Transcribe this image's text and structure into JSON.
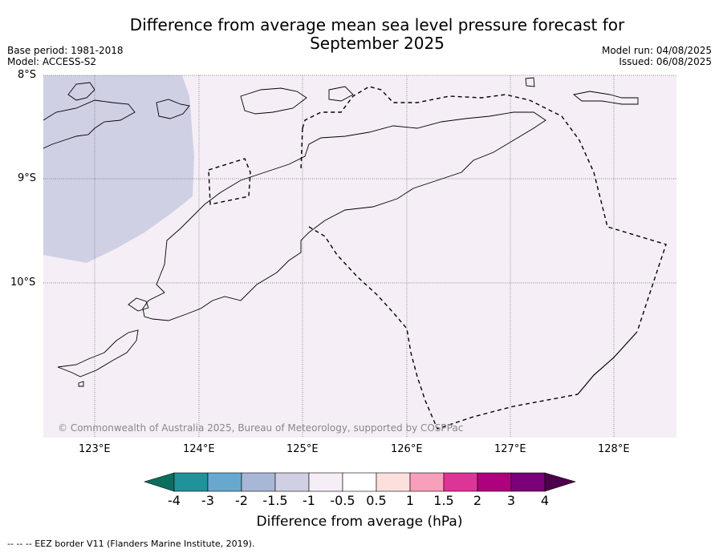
{
  "header": {
    "title": "Difference from average mean sea level pressure forecast for\nSeptember 2025",
    "base_period": "Base period: 1981-2018",
    "model": "Model: ACCESS-S2",
    "model_run": "Model run: 04/08/2025",
    "issued": "Issued: 06/08/2025"
  },
  "map": {
    "lat_labels": [
      "8°S",
      "9°S",
      "10°S"
    ],
    "lon_labels": [
      "123°E",
      "124°E",
      "125°E",
      "126°E",
      "127°E",
      "128°E"
    ],
    "background_color": "#f5eef6",
    "anomaly_patch_color": "#cfd0e4",
    "copyright": "© Commonwealth of Australia 2025, Bureau of Meteorology, supported by COSPPac"
  },
  "colorbar": {
    "title": "Difference from average (hPa)",
    "ticks": [
      "-4",
      "-3",
      "-2",
      "-1.5",
      "-1",
      "-0.5",
      "0.5",
      "1",
      "1.5",
      "2",
      "3",
      "4"
    ],
    "colors": [
      "#0b6e5f",
      "#1f9399",
      "#68a8cf",
      "#a8b7d6",
      "#cfd0e4",
      "#f5eef6",
      "#ffffff",
      "#fde0dd",
      "#f99fbb",
      "#dd3497",
      "#ae017e",
      "#7a0177",
      "#4d004b"
    ]
  },
  "footnote": "--  --  -- EEZ border V11 (Flanders Marine Institute, 2019)."
}
